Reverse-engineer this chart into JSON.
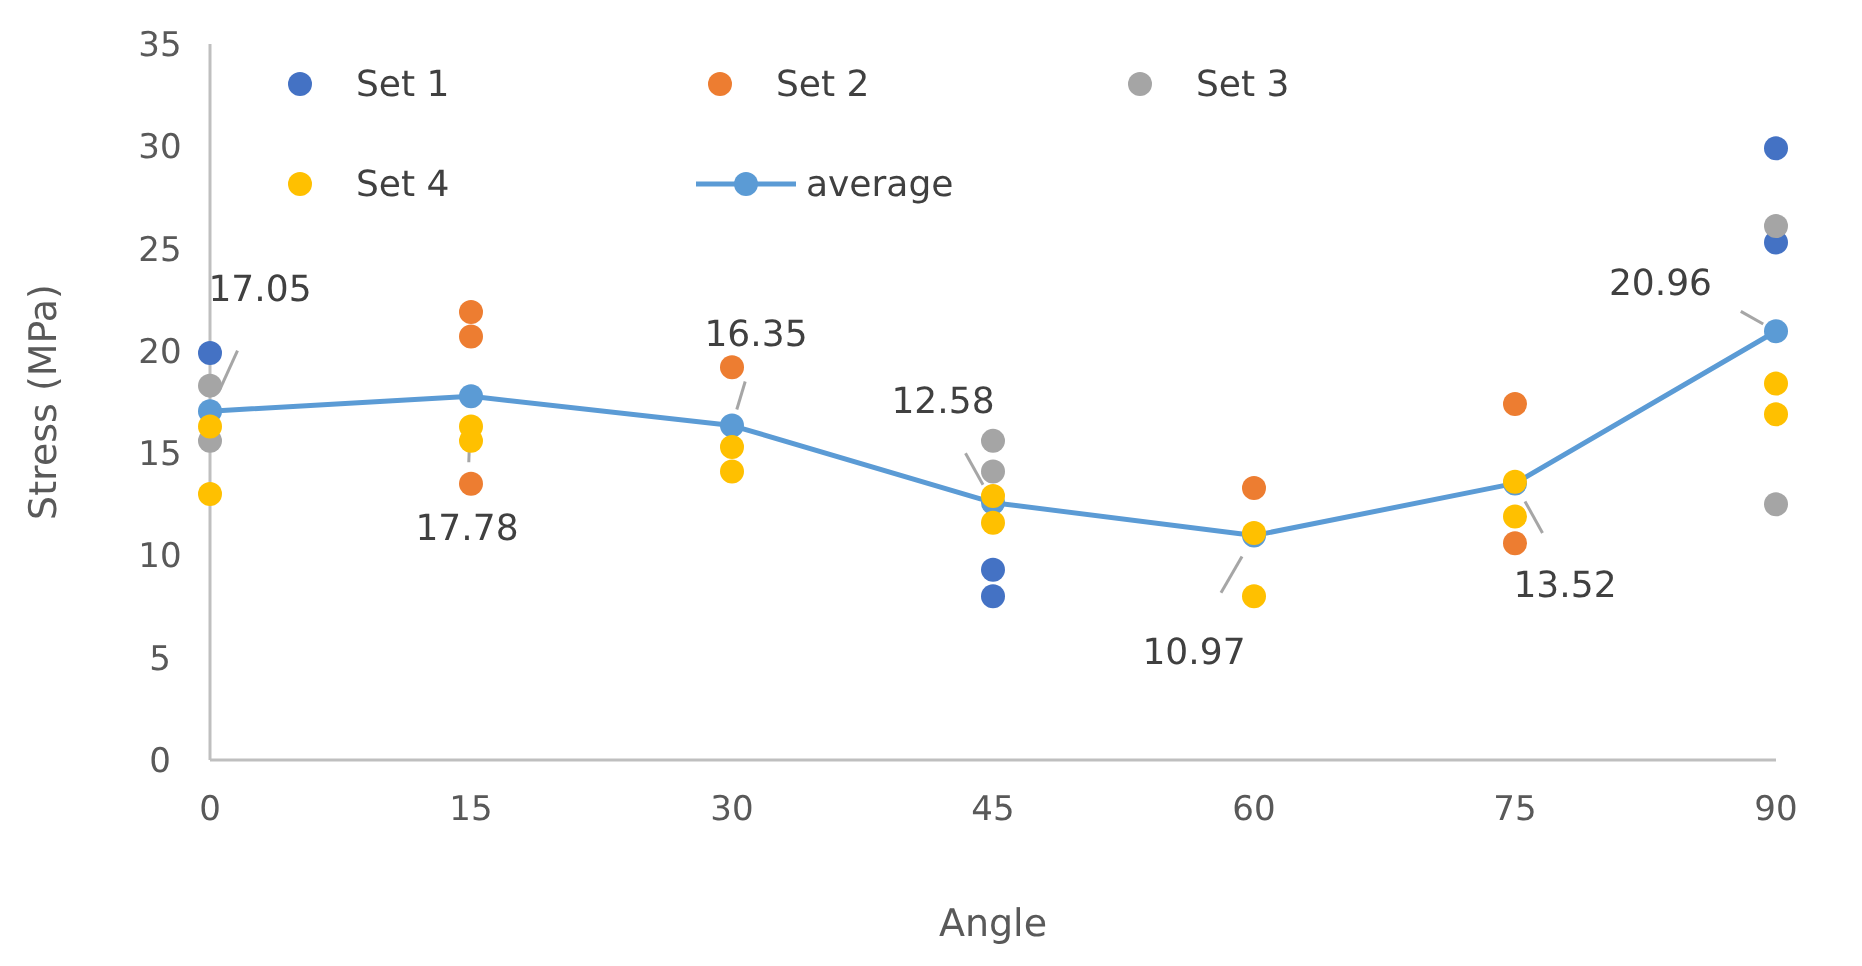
{
  "chart_data": {
    "type": "scatter",
    "xlabel": "Angle",
    "ylabel": "Stress (MPa)",
    "xlim": [
      0,
      90
    ],
    "xticks": [
      0,
      15,
      30,
      45,
      60,
      75,
      90
    ],
    "ylim": [
      0,
      35
    ],
    "yticks": [
      0,
      5,
      10,
      15,
      20,
      25,
      30,
      35
    ],
    "grid": false,
    "legend": "top left",
    "marker": "circle",
    "series": [
      {
        "name": "Set 1",
        "color": "#4472c4",
        "x": [
          0,
          45,
          45,
          90,
          90
        ],
        "values": [
          19.9,
          9.3,
          8.0,
          29.9,
          25.3
        ]
      },
      {
        "name": "Set 2",
        "color": "#ed7d31",
        "x": [
          15,
          15,
          15,
          30,
          60,
          75,
          75
        ],
        "values": [
          21.9,
          20.7,
          13.5,
          19.2,
          13.3,
          17.4,
          10.6
        ]
      },
      {
        "name": "Set 3",
        "color": "#a5a5a5",
        "x": [
          0,
          0,
          45,
          45,
          90,
          90
        ],
        "values": [
          18.3,
          15.6,
          15.6,
          14.1,
          26.1,
          12.5
        ]
      },
      {
        "name": "Set 4",
        "color": "#ffc000",
        "x": [
          0,
          0,
          15,
          15,
          30,
          30,
          45,
          45,
          60,
          60,
          75,
          75,
          90,
          90
        ],
        "values": [
          16.3,
          13.0,
          16.3,
          15.6,
          15.3,
          14.1,
          12.9,
          11.6,
          11.1,
          8.0,
          13.6,
          11.9,
          18.4,
          16.9
        ]
      },
      {
        "name": "average",
        "type": "line",
        "color": "#5b9bd5",
        "x": [
          0,
          15,
          30,
          45,
          60,
          75,
          90
        ],
        "values": [
          17.05,
          17.78,
          16.35,
          12.58,
          10.97,
          13.52,
          20.96
        ],
        "value_labels": [
          "17.05",
          "17.78",
          "16.35",
          "12.58",
          "10.97",
          "13.52",
          "20.96"
        ]
      }
    ]
  }
}
